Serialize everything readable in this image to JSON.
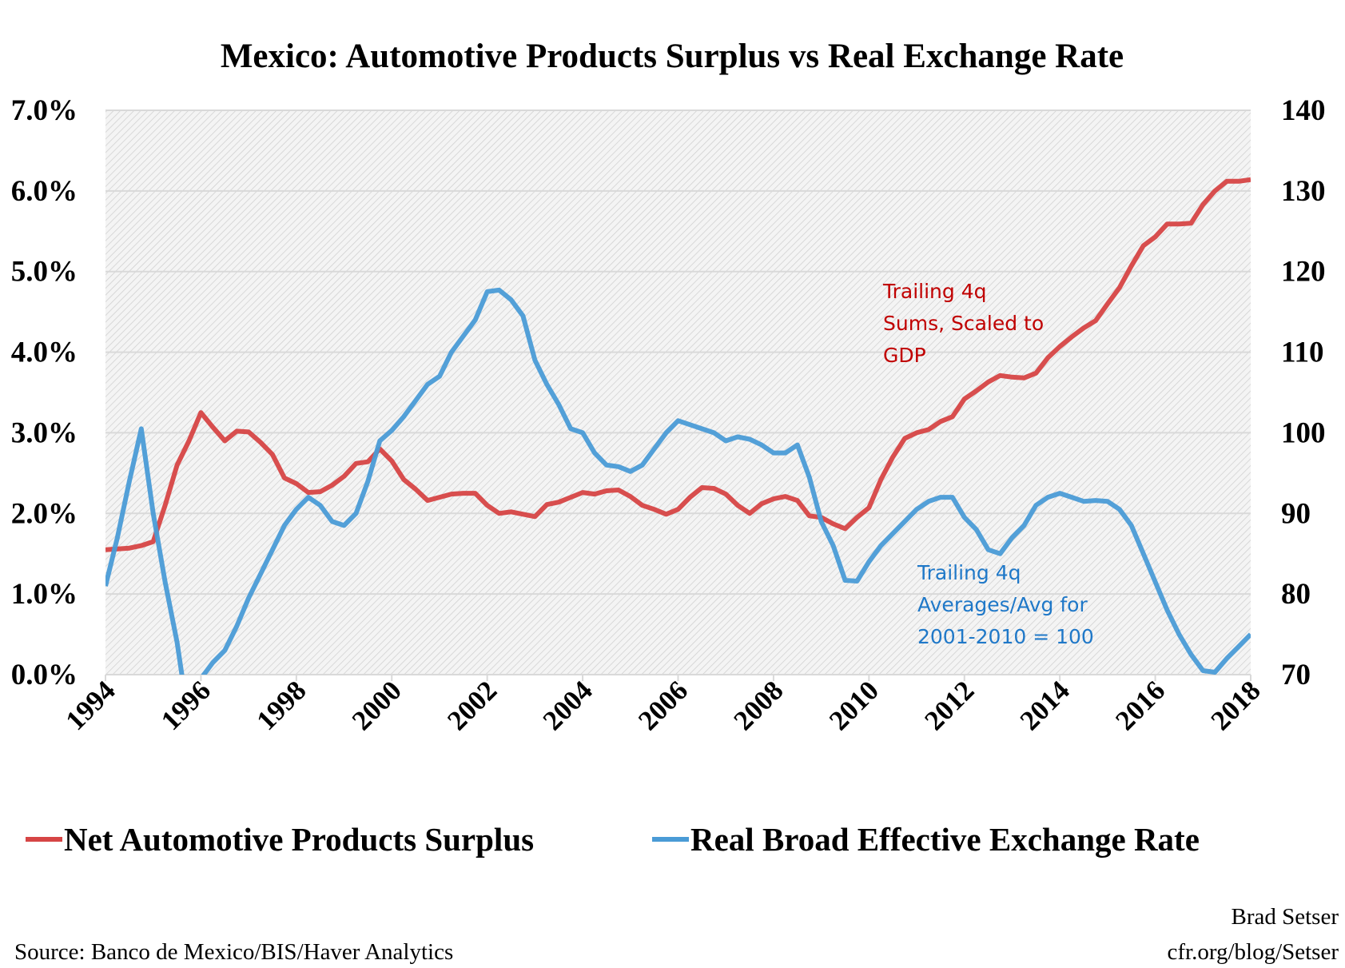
{
  "chart_data": {
    "type": "line",
    "title": "Mexico: Automotive Products Surplus vs Real Exchange Rate",
    "x_ticks": [
      "1994",
      "1996",
      "1998",
      "2000",
      "2002",
      "2004",
      "2006",
      "2008",
      "2010",
      "2012",
      "2014",
      "2016",
      "2018"
    ],
    "xlim": [
      1994,
      2018
    ],
    "y_left": {
      "ticks": [
        "0.0%",
        "1.0%",
        "2.0%",
        "3.0%",
        "4.0%",
        "5.0%",
        "6.0%",
        "7.0%"
      ],
      "ylim": [
        0,
        7
      ]
    },
    "y_right": {
      "ticks": [
        "70",
        "80",
        "90",
        "100",
        "110",
        "120",
        "130",
        "140"
      ],
      "ylim": [
        70,
        140
      ]
    },
    "grid": true,
    "legend_position": "bottom",
    "x_quarters_start": 1994.0,
    "x_step": 0.25,
    "series": [
      {
        "name": "Net Automotive Products Surplus",
        "axis": "left",
        "color": "#d64545",
        "values": [
          1.55,
          1.56,
          1.57,
          1.6,
          1.65,
          2.1,
          2.6,
          2.9,
          3.25,
          3.07,
          2.9,
          3.02,
          3.01,
          2.88,
          2.73,
          2.44,
          2.37,
          2.26,
          2.27,
          2.35,
          2.46,
          2.62,
          2.64,
          2.8,
          2.65,
          2.42,
          2.3,
          2.16,
          2.2,
          2.24,
          2.25,
          2.25,
          2.1,
          2.0,
          2.02,
          1.99,
          1.96,
          2.11,
          2.14,
          2.2,
          2.26,
          2.24,
          2.28,
          2.29,
          2.21,
          2.1,
          2.05,
          1.99,
          2.05,
          2.2,
          2.32,
          2.31,
          2.24,
          2.1,
          2.0,
          2.12,
          2.18,
          2.21,
          2.16,
          1.97,
          1.95,
          1.87,
          1.81,
          1.95,
          2.07,
          2.42,
          2.7,
          2.93,
          3.0,
          3.04,
          3.14,
          3.2,
          3.42,
          3.52,
          3.63,
          3.71,
          3.69,
          3.68,
          3.74,
          3.93,
          4.07,
          4.19,
          4.3,
          4.39,
          4.6,
          4.8,
          5.07,
          5.32,
          5.43,
          5.59,
          5.59,
          5.6,
          5.83,
          6.0,
          6.12,
          6.12,
          6.14
        ]
      },
      {
        "name": "Real Broad Effective Exchange Rate",
        "axis": "right",
        "color": "#4a9bd6",
        "values": [
          81,
          87,
          94,
          100.5,
          90,
          81.5,
          74,
          64,
          69.5,
          71.5,
          73,
          76,
          79.5,
          82.5,
          85.5,
          88.5,
          90.5,
          92,
          91,
          89,
          88.5,
          90,
          94,
          99,
          100.3,
          102,
          104,
          106,
          107,
          110,
          112,
          114,
          117.5,
          117.7,
          116.5,
          114.5,
          109,
          106,
          103.5,
          100.5,
          100,
          97.5,
          96,
          95.8,
          95.2,
          96,
          98,
          100,
          101.5,
          101,
          100.5,
          100,
          99,
          99.5,
          99.2,
          98.5,
          97.5,
          97.5,
          98.5,
          94.5,
          89,
          86,
          81.7,
          81.6,
          84,
          86,
          87.5,
          89,
          90.5,
          91.5,
          92,
          92,
          89.5,
          88,
          85.5,
          85,
          87,
          88.5,
          91,
          92,
          92.5,
          92,
          91.5,
          91.6,
          91.5,
          90.5,
          88.5,
          85,
          81.5,
          78,
          75,
          72.5,
          70.5,
          70.3,
          72,
          73.5,
          75
        ]
      }
    ],
    "annotations": [
      {
        "lines": [
          "Trailing 4q",
          "Sums, Scaled to",
          "GDP"
        ],
        "color": "#c00000"
      },
      {
        "lines": [
          "Trailing 4q",
          "Averages/Avg for",
          "2001-2010 = 100"
        ],
        "color": "#1f78c8"
      }
    ]
  },
  "source": "Source: Banco de Mexico/BIS/Haver  Analytics",
  "credit": [
    "Brad Setser",
    "cfr.org/blog/Setser"
  ]
}
